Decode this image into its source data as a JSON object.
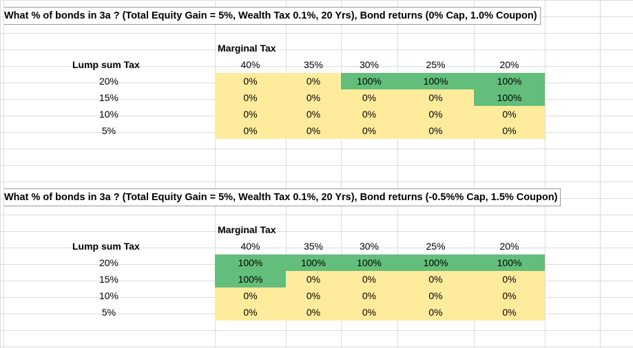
{
  "tables": [
    {
      "title": "What % of bonds in 3a ?  (Total Equity Gain = 5%, Wealth Tax 0.1%, 20 Yrs), Bond returns (0% Cap, 1.0% Coupon)",
      "marginal_label": "Marginal Tax",
      "lump_label": "Lump sum Tax",
      "columns": [
        "40%",
        "35%",
        "30%",
        "25%",
        "20%"
      ],
      "rows": [
        {
          "label": "20%",
          "values": [
            "0%",
            "0%",
            "100%",
            "100%",
            "100%"
          ]
        },
        {
          "label": "15%",
          "values": [
            "0%",
            "0%",
            "0%",
            "0%",
            "100%"
          ]
        },
        {
          "label": "10%",
          "values": [
            "0%",
            "0%",
            "0%",
            "0%",
            "0%"
          ]
        },
        {
          "label": "5%",
          "values": [
            "0%",
            "0%",
            "0%",
            "0%",
            "0%"
          ]
        }
      ]
    },
    {
      "title": "What % of bonds in 3a ?  (Total Equity Gain = 5%, Wealth Tax 0.1%, 20 Yrs), Bond returns (-0.5%% Cap, 1.5% Coupon)",
      "marginal_label": "Marginal Tax",
      "lump_label": "Lump sum Tax",
      "columns": [
        "40%",
        "35%",
        "30%",
        "25%",
        "20%"
      ],
      "rows": [
        {
          "label": "20%",
          "values": [
            "100%",
            "100%",
            "100%",
            "100%",
            "100%"
          ]
        },
        {
          "label": "15%",
          "values": [
            "100%",
            "0%",
            "0%",
            "0%",
            "0%"
          ]
        },
        {
          "label": "10%",
          "values": [
            "0%",
            "0%",
            "0%",
            "0%",
            "0%"
          ]
        },
        {
          "label": "5%",
          "values": [
            "0%",
            "0%",
            "0%",
            "0%",
            "0%"
          ]
        }
      ]
    }
  ],
  "colors": {
    "high": "#63be7b",
    "low": "#ffeb9c"
  }
}
